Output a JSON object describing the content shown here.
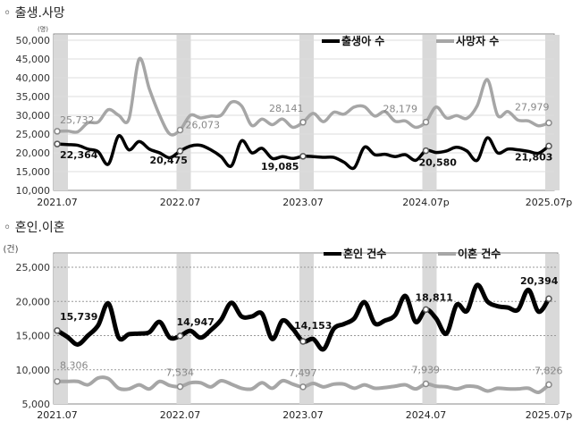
{
  "chart_data": [
    {
      "type": "line",
      "title": "◦ 출생.사망",
      "unit": "(명)",
      "x_tick_labels": [
        "2021.07",
        "2022.07",
        "2023.07",
        "2024.07p",
        "2025.07p"
      ],
      "x_range": [
        "2021.07",
        "2025.07"
      ],
      "frequency": "monthly",
      "ylim": [
        10000,
        50000
      ],
      "y_ticks": [
        "10,000",
        "15,000",
        "20,000",
        "25,000",
        "30,000",
        "35,000",
        "40,000",
        "45,000",
        "50,000"
      ],
      "grid": true,
      "legend": "top-right",
      "highlight_months": [
        "2021.07",
        "2022.07",
        "2023.07",
        "2024.07",
        "2025.07"
      ],
      "series": [
        {
          "name": "출생아 수",
          "color": "#000000",
          "values": [
            22364,
            22200,
            22000,
            21000,
            20300,
            17000,
            24500,
            20800,
            23000,
            21000,
            20000,
            18700,
            20475,
            21800,
            22000,
            20800,
            19000,
            16500,
            23200,
            20000,
            21200,
            18500,
            19000,
            18500,
            19085,
            19000,
            18800,
            18800,
            17500,
            16000,
            21500,
            19500,
            19600,
            19000,
            19500,
            18000,
            20580,
            20100,
            20500,
            21500,
            20500,
            18000,
            24000,
            20000,
            21000,
            20800,
            20400,
            19900,
            21803
          ],
          "labels": [
            "22,364",
            "20,475",
            "19,085",
            "20,580",
            "21,803"
          ]
        },
        {
          "name": "사망자 수",
          "color": "#a6a6a6",
          "values": [
            25732,
            25800,
            25600,
            28000,
            28200,
            31500,
            30000,
            29000,
            45000,
            37000,
            30000,
            25000,
            26073,
            30000,
            29300,
            29800,
            30000,
            33500,
            32500,
            27300,
            29000,
            27500,
            29000,
            26800,
            28141,
            30500,
            28300,
            30800,
            30300,
            32200,
            32300,
            29800,
            31000,
            28400,
            28500,
            26800,
            28179,
            32200,
            29300,
            29900,
            29200,
            32500,
            39500,
            30000,
            31000,
            28700,
            28500,
            27200,
            27979
          ],
          "labels": [
            "25,732",
            "26,073",
            "28,141",
            "28,179",
            "27,979"
          ]
        }
      ]
    },
    {
      "type": "line",
      "title": "◦ 혼인.이혼",
      "unit": "(건)",
      "x_tick_labels": [
        "2021.07",
        "2022.07",
        "2023.07",
        "2024.07",
        "2025.07p"
      ],
      "x_range": [
        "2021.07",
        "2025.07"
      ],
      "frequency": "monthly",
      "ylim": [
        5000,
        27500
      ],
      "y_ticks": [
        "5,000",
        "10,000",
        "15,000",
        "20,000",
        "25,000"
      ],
      "grid": true,
      "legend": "top-right",
      "highlight_months": [
        "2021.07",
        "2022.07",
        "2023.07",
        "2024.07",
        "2025.07"
      ],
      "series": [
        {
          "name": "혼인 건수",
          "color": "#000000",
          "values": [
            15739,
            14800,
            13700,
            15000,
            16500,
            19700,
            14700,
            15200,
            15300,
            15500,
            17000,
            14700,
            14947,
            15700,
            14700,
            15800,
            17300,
            19800,
            17800,
            17800,
            18200,
            14500,
            17200,
            16000,
            14153,
            14500,
            13000,
            16000,
            16700,
            17500,
            19900,
            16800,
            17200,
            18000,
            20800,
            17000,
            18811,
            17500,
            15300,
            19500,
            18600,
            22400,
            20000,
            19300,
            19100,
            18800,
            21700,
            18500,
            20394
          ],
          "labels": [
            "15,739",
            "14,947",
            "14,153",
            "18,811",
            "20,394"
          ]
        },
        {
          "name": "이혼 건수",
          "color": "#a6a6a6",
          "values": [
            8306,
            8300,
            8300,
            7800,
            8800,
            8700,
            7300,
            7200,
            7800,
            7200,
            8300,
            7700,
            7534,
            8100,
            8100,
            7500,
            8400,
            7900,
            7300,
            7200,
            8100,
            7300,
            8400,
            7900,
            7497,
            8000,
            7500,
            7900,
            7900,
            7300,
            7800,
            7300,
            7400,
            7600,
            7800,
            7200,
            7939,
            7600,
            7500,
            7200,
            7600,
            7500,
            6900,
            7300,
            7200,
            7200,
            7300,
            6700,
            7826
          ],
          "labels": [
            "8,306",
            "7,534",
            "7,497",
            "7,939",
            "7,826"
          ]
        }
      ]
    }
  ]
}
